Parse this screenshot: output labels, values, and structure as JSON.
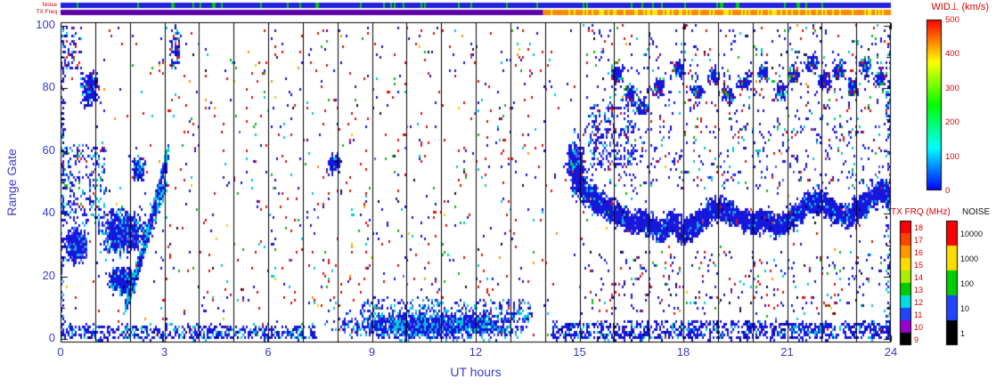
{
  "axes": {
    "x_label": "UT hours",
    "y_label": "Range Gate"
  },
  "strips": {
    "noise_label": "Noise",
    "txfreq_label": "TX Freq",
    "noise": {
      "base_color": "#2222dd",
      "mark_color": "#00cc00",
      "mark_count": 45
    },
    "txfreq": {
      "segments": [
        {
          "from": 0,
          "to": 13.95,
          "color": "#5c00aa"
        },
        {
          "from": 13.95,
          "to": 24,
          "color": "#ff8800"
        }
      ],
      "mark_color": "#ffee00",
      "mark_count": 70,
      "mark_range": [
        13.95,
        24
      ]
    }
  },
  "colorbars": {
    "wid": {
      "title": "WID⊥ (km/s)",
      "ticks": [
        "500",
        "400",
        "300",
        "200",
        "100",
        "0"
      ],
      "gradient_top_to_bottom": [
        "#ff0000",
        "#ffff00",
        "#00ff00",
        "#00ffff",
        "#0000ff"
      ]
    },
    "txfrq": {
      "title": "TX FRQ (MHz)",
      "ticks": [
        "18",
        "17",
        "16",
        "15",
        "14",
        "13",
        "12",
        "11",
        "10",
        "9"
      ],
      "segment_colors": [
        "#ff0000",
        "#ff4400",
        "#ff9900",
        "#ffdd00",
        "#aaee00",
        "#00cc00",
        "#00dddd",
        "#2244ff",
        "#9900cc",
        "#000000"
      ]
    },
    "noise": {
      "title": "NOISE",
      "ticks": [
        "10000",
        "1000",
        "100",
        "10",
        "1"
      ],
      "segment_colors": [
        "#ff0000",
        "#ffdd00",
        "#00cc00",
        "#2244ff",
        "#000000"
      ]
    }
  },
  "ui_colors": {
    "axis_text": "#3b3bc8",
    "axis_line": "#000000",
    "label_red": "#dd0000",
    "background": "#ffffff"
  },
  "chart_data": {
    "type": "heatmap",
    "title": "WID⊥ (km/s)",
    "xlabel": "UT hours",
    "ylabel": "Range Gate",
    "xlim": [
      0,
      24
    ],
    "ylim": [
      0,
      102
    ],
    "x_ticks": [
      0,
      3,
      6,
      9,
      12,
      15,
      18,
      21,
      24
    ],
    "y_ticks": [
      0,
      20,
      40,
      60,
      80,
      100
    ],
    "grid": "vertical black line at every UT hour",
    "colorbar": {
      "label": "WID⊥ (km/s)",
      "range": [
        0,
        500
      ],
      "ticks": [
        0,
        100,
        200,
        300,
        400,
        500
      ]
    },
    "tx_frequency": "purple (~10 MHz) band before ~14 UT, orange (~16 MHz) after ~14 UT",
    "description": "SuperDARN radar summary plot of perpendicular spectral width versus range gate and UT. Mostly low-width (blue/cyan <100 km/s) echoes: clustered scatter at gates 13-62 during 0-3 UT with rising diagonal streaks near 2-3 UT, a near-range band at gates 0-10 all day (densest 8-14 UT), and a continuous wavy dense band near gates 34-49 from ~14.6-24 UT with patchy clusters at gates 72-92; sparse isolated red (high width), green and cyan points scattered throughout.",
    "palette": {
      "blue": "#1616dd",
      "blue2": "#5560f0",
      "cyan": "#00c8dc",
      "red": "#dc1414",
      "green": "#16b416",
      "orange": "#ff9600",
      "yellow": "#e6d200",
      "black": "#141414",
      "navy": "#000082"
    },
    "regions": [
      {
        "name": "left-edge-column",
        "kind": "rect",
        "x": [
          0,
          0.12
        ],
        "y": [
          0,
          100
        ],
        "count": 130,
        "colors": {
          "blue": 80,
          "cyan": 10,
          "navy": 10
        }
      },
      {
        "name": "early-low-blob",
        "kind": "blob",
        "x": [
          0.05,
          0.85
        ],
        "y": [
          23,
          37
        ],
        "count": 520,
        "colors": {
          "blue": 75,
          "cyan": 15,
          "blue2": 10
        }
      },
      {
        "name": "early-mid-scatter",
        "kind": "rect",
        "x": [
          0.05,
          1.3
        ],
        "y": [
          37,
          62
        ],
        "count": 240,
        "colors": {
          "blue": 63,
          "cyan": 22,
          "blue2": 5,
          "red": 5,
          "green": 5
        }
      },
      {
        "name": "early-topleft-specks",
        "kind": "rect",
        "x": [
          0.05,
          0.6
        ],
        "y": [
          86,
          100
        ],
        "count": 60,
        "colors": {
          "blue": 70,
          "cyan": 20,
          "red": 10
        }
      },
      {
        "name": "early-high-blob",
        "kind": "blob",
        "x": [
          0.5,
          1.2
        ],
        "y": [
          73,
          87
        ],
        "count": 260,
        "colors": {
          "blue": 78,
          "cyan": 12,
          "navy": 5,
          "red": 5
        }
      },
      {
        "name": "h1-2-mass",
        "kind": "blob",
        "x": [
          1.0,
          2.6
        ],
        "y": [
          25,
          43
        ],
        "count": 950,
        "colors": {
          "blue": 72,
          "cyan": 20,
          "blue2": 8
        }
      },
      {
        "name": "h1-2-low-blob",
        "kind": "blob",
        "x": [
          1.25,
          2.35
        ],
        "y": [
          13,
          24
        ],
        "count": 480,
        "colors": {
          "blue": 80,
          "cyan": 14,
          "navy": 6
        }
      },
      {
        "name": "diag-streak-1",
        "kind": "diag",
        "x": [
          1.85,
          3.05
        ],
        "y": [
          10,
          50
        ],
        "th": 4,
        "count": 420,
        "colors": {
          "blue": 55,
          "cyan": 40,
          "blue2": 5
        }
      },
      {
        "name": "diag-streak-2",
        "kind": "diag",
        "x": [
          2.1,
          3.1
        ],
        "y": [
          18,
          58
        ],
        "th": 3,
        "count": 360,
        "colors": {
          "blue": 60,
          "cyan": 35,
          "navy": 5
        }
      },
      {
        "name": "diag-streak-3",
        "kind": "diag",
        "x": [
          2.45,
          3.12
        ],
        "y": [
          30,
          62
        ],
        "th": 2.5,
        "count": 220,
        "colors": {
          "blue": 60,
          "cyan": 30,
          "blue2": 10
        }
      },
      {
        "name": "h2-patch-mid",
        "kind": "blob",
        "x": [
          2.0,
          2.5
        ],
        "y": [
          49,
          59
        ],
        "count": 150,
        "colors": {
          "blue": 75,
          "cyan": 20,
          "navy": 5
        }
      },
      {
        "name": "h3-top-patch",
        "kind": "rect",
        "x": [
          3.15,
          3.45
        ],
        "y": [
          86,
          100
        ],
        "count": 70,
        "colors": {
          "blue": 70,
          "cyan": 15,
          "red": 10,
          "navy": 5
        }
      },
      {
        "name": "bottom-band-early",
        "kind": "rect",
        "x": [
          0,
          7.4
        ],
        "y": [
          0,
          4.5
        ],
        "count": 560,
        "colors": {
          "blue": 72,
          "cyan": 20,
          "navy": 8
        }
      },
      {
        "name": "bottom-band-mid",
        "kind": "blob",
        "x": [
          7.4,
          14.2
        ],
        "y": [
          -1,
          9.5
        ],
        "count": 1650,
        "colors": {
          "blue": 64,
          "cyan": 28,
          "blue2": 8
        }
      },
      {
        "name": "bottom-band-mid-fuzz",
        "kind": "rect",
        "x": [
          8.7,
          13.6
        ],
        "y": [
          5,
          13
        ],
        "count": 300,
        "colors": {
          "blue": 58,
          "cyan": 32,
          "blue2": 10
        }
      },
      {
        "name": "bottom-band-late",
        "kind": "rect",
        "x": [
          14.2,
          24
        ],
        "y": [
          0,
          5.5
        ],
        "count": 1050,
        "colors": {
          "blue": 76,
          "cyan": 14,
          "navy": 10
        }
      },
      {
        "name": "midday-sparse",
        "kind": "rect",
        "x": [
          2.9,
          14.3
        ],
        "y": [
          8,
          99
        ],
        "count": 430,
        "colors": {
          "red": 46,
          "blue": 28,
          "cyan": 12,
          "green": 7,
          "black": 3,
          "orange": 2,
          "yellow": 2
        }
      },
      {
        "name": "h8-clump",
        "kind": "blob",
        "x": [
          7.7,
          8.15
        ],
        "y": [
          52,
          60
        ],
        "count": 90,
        "colors": {
          "blue": 80,
          "cyan": 15,
          "navy": 5
        }
      },
      {
        "name": "band-start-hook",
        "kind": "blob",
        "x": [
          14.55,
          15.2
        ],
        "y": [
          49,
          63
        ],
        "count": 430,
        "colors": {
          "blue": 78,
          "cyan": 14,
          "blue2": 8
        }
      },
      {
        "name": "main-band-wave",
        "kind": "wave",
        "x0": 15.0,
        "dx": 0.3,
        "sx": 0.16,
        "sy": 4.6,
        "count_per": 200,
        "centers": [
          49,
          46,
          43,
          41,
          39,
          37,
          38,
          36,
          35,
          37,
          34,
          36,
          39,
          42,
          41,
          39,
          38,
          37,
          38,
          36,
          37,
          40,
          43,
          44,
          42,
          40,
          39,
          42,
          45,
          47,
          46
        ],
        "colors": {
          "blue": 84,
          "cyan": 8,
          "blue2": 5,
          "navy": 3
        }
      },
      {
        "name": "band-upper-fuzz",
        "kind": "rect",
        "x": [
          14.8,
          24
        ],
        "y": [
          48,
          68
        ],
        "count": 430,
        "colors": {
          "blue": 66,
          "cyan": 10,
          "red": 10,
          "green": 5,
          "blue2": 9
        }
      },
      {
        "name": "band-lower-scatter",
        "kind": "rect",
        "x": [
          15,
          24
        ],
        "y": [
          8,
          28
        ],
        "count": 270,
        "colors": {
          "blue": 58,
          "red": 20,
          "cyan": 10,
          "green": 5,
          "black": 7
        }
      },
      {
        "name": "late-high-scatter",
        "kind": "rect",
        "x": [
          15.2,
          24
        ],
        "y": [
          68,
          100
        ],
        "count": 400,
        "colors": {
          "blue": 55,
          "red": 20,
          "cyan": 12,
          "green": 8,
          "black": 5
        }
      },
      {
        "name": "late-high-clumps",
        "kind": "multiblob",
        "sx": 0.12,
        "sy": 4,
        "count_per": 75,
        "points": [
          [
            16.1,
            84
          ],
          [
            16.45,
            78
          ],
          [
            16.8,
            74
          ],
          [
            17.3,
            80
          ],
          [
            17.9,
            86
          ],
          [
            18.4,
            79
          ],
          [
            18.9,
            84
          ],
          [
            19.3,
            78
          ],
          [
            19.8,
            82
          ],
          [
            20.3,
            85
          ],
          [
            20.8,
            79
          ],
          [
            21.2,
            84
          ],
          [
            21.7,
            88
          ],
          [
            22.1,
            82
          ],
          [
            22.5,
            86
          ],
          [
            22.9,
            80
          ],
          [
            23.3,
            87
          ],
          [
            23.7,
            83
          ]
        ],
        "colors": {
          "blue": 76,
          "cyan": 10,
          "red": 8,
          "green": 6
        }
      },
      {
        "name": "h15-16-upper",
        "kind": "rect",
        "x": [
          15.3,
          16.6
        ],
        "y": [
          55,
          75
        ],
        "count": 220,
        "colors": {
          "blue": 70,
          "cyan": 15,
          "blue2": 10,
          "red": 5
        }
      },
      {
        "name": "right-edge-column",
        "kind": "rect",
        "x": [
          23.86,
          24
        ],
        "y": [
          0,
          100
        ],
        "count": 110,
        "colors": {
          "blue": 75,
          "cyan": 15,
          "navy": 10
        }
      },
      {
        "name": "global-sparse",
        "kind": "rect",
        "x": [
          0,
          24
        ],
        "y": [
          0,
          100
        ],
        "count": 680,
        "colors": {
          "blue": 38,
          "red": 28,
          "cyan": 12,
          "green": 9,
          "black": 4,
          "orange": 4,
          "yellow": 3,
          "blue2": 2
        }
      }
    ]
  }
}
